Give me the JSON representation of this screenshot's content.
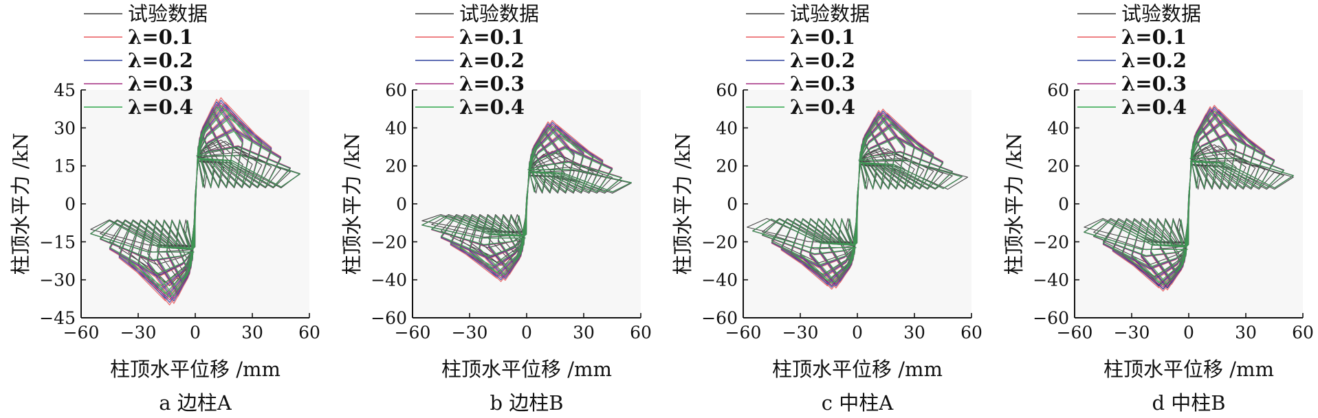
{
  "legend": [
    {
      "label": "试验数据",
      "color": "#333333"
    },
    {
      "label": "λ=0.1",
      "color": "#e8565a"
    },
    {
      "label": "λ=0.2",
      "color": "#2a3e9c"
    },
    {
      "label": "λ=0.3",
      "color": "#a0287f"
    },
    {
      "label": "λ=0.4",
      "color": "#2ea64a"
    }
  ],
  "chart_data": [
    {
      "type": "line",
      "caption": "a 边柱A",
      "xlabel": "柱顶水平位移 /mm",
      "ylabel": "柱顶水平力 /kN",
      "xlim": [
        -60,
        60
      ],
      "ylim": [
        -45,
        45
      ],
      "xticks": [
        -60,
        -30,
        0,
        30,
        60
      ],
      "xtick_labels": [
        "−60",
        "−30",
        "0",
        "30",
        "60"
      ],
      "yticks": [
        -45,
        -30,
        -15,
        0,
        15,
        30,
        45
      ],
      "ytick_labels": [
        "−45",
        "−30",
        "−15",
        "0",
        "15",
        "30",
        "45"
      ],
      "grid": false,
      "legend_position": "top-left",
      "series": [
        {
          "name": "试验数据",
          "amplitudes": [
            6,
            10,
            15,
            20,
            25,
            30,
            35,
            40,
            45,
            50,
            55
          ],
          "peak_pos": 25,
          "peak_neg": -36,
          "yield": 18
        },
        {
          "name": "λ=0.1",
          "amplitudes": [
            5,
            10,
            15,
            20,
            25,
            30,
            35,
            40,
            45,
            50,
            55
          ],
          "peak_pos": 42,
          "peak_neg": -40,
          "yield": 19
        },
        {
          "name": "λ=0.2",
          "amplitudes": [
            5,
            10,
            15,
            20,
            25,
            30,
            35,
            40,
            45,
            50,
            55
          ],
          "peak_pos": 41,
          "peak_neg": -39,
          "yield": 19
        },
        {
          "name": "λ=0.3",
          "amplitudes": [
            5,
            10,
            15,
            20,
            25,
            30,
            35,
            40,
            45,
            50,
            55
          ],
          "peak_pos": 40,
          "peak_neg": -38,
          "yield": 19
        },
        {
          "name": "λ=0.4",
          "amplitudes": [
            5,
            10,
            15,
            20,
            25,
            30,
            35,
            40,
            45,
            50,
            55
          ],
          "peak_pos": 39,
          "peak_neg": -37,
          "yield": 19
        }
      ]
    },
    {
      "type": "line",
      "caption": "b 边柱B",
      "xlabel": "柱顶水平位移 /mm",
      "ylabel": "柱顶水平力 /kN",
      "xlim": [
        -60,
        60
      ],
      "ylim": [
        -60,
        60
      ],
      "xticks": [
        -60,
        -30,
        0,
        30,
        60
      ],
      "xtick_labels": [
        "−60",
        "−30",
        "0",
        "30",
        "60"
      ],
      "yticks": [
        -60,
        -40,
        -20,
        0,
        20,
        40,
        60
      ],
      "ytick_labels": [
        "−60",
        "−40",
        "−20",
        "0",
        "20",
        "40",
        "60"
      ],
      "grid": false,
      "legend_position": "top-left",
      "series": [
        {
          "name": "试验数据",
          "amplitudes": [
            6,
            10,
            15,
            20,
            25,
            30,
            35,
            40,
            45,
            50,
            55
          ],
          "peak_pos": 28,
          "peak_neg": -36,
          "yield": 16
        },
        {
          "name": "λ=0.1",
          "amplitudes": [
            5,
            10,
            15,
            20,
            25,
            30,
            35,
            40,
            45,
            50,
            55
          ],
          "peak_pos": 44,
          "peak_neg": -41,
          "yield": 18
        },
        {
          "name": "λ=0.2",
          "amplitudes": [
            5,
            10,
            15,
            20,
            25,
            30,
            35,
            40,
            45,
            50,
            55
          ],
          "peak_pos": 43,
          "peak_neg": -40,
          "yield": 18
        },
        {
          "name": "λ=0.3",
          "amplitudes": [
            5,
            10,
            15,
            20,
            25,
            30,
            35,
            40,
            45,
            50,
            55
          ],
          "peak_pos": 42,
          "peak_neg": -39,
          "yield": 18
        },
        {
          "name": "λ=0.4",
          "amplitudes": [
            5,
            10,
            15,
            20,
            25,
            30,
            35,
            40,
            45,
            50,
            55
          ],
          "peak_pos": 41,
          "peak_neg": -38,
          "yield": 18
        }
      ]
    },
    {
      "type": "line",
      "caption": "c 中柱A",
      "xlabel": "柱顶水平位移 /mm",
      "ylabel": "柱顶水平力 /kN",
      "xlim": [
        -60,
        60
      ],
      "ylim": [
        -60,
        60
      ],
      "xticks": [
        -60,
        -30,
        0,
        30,
        60
      ],
      "xtick_labels": [
        "−60",
        "−30",
        "0",
        "30",
        "60"
      ],
      "yticks": [
        -60,
        -40,
        -20,
        0,
        20,
        40,
        60
      ],
      "ytick_labels": [
        "−60",
        "−40",
        "−20",
        "0",
        "20",
        "40",
        "60"
      ],
      "grid": false,
      "legend_position": "top-left",
      "series": [
        {
          "name": "试验数据",
          "amplitudes": [
            6,
            10,
            15,
            20,
            25,
            30,
            35,
            40,
            45,
            50,
            58
          ],
          "peak_pos": 30,
          "peak_neg": -48,
          "yield": 22
        },
        {
          "name": "λ=0.1",
          "amplitudes": [
            5,
            10,
            15,
            20,
            25,
            30,
            35,
            40,
            45,
            50,
            55
          ],
          "peak_pos": 50,
          "peak_neg": -45,
          "yield": 23
        },
        {
          "name": "λ=0.2",
          "amplitudes": [
            5,
            10,
            15,
            20,
            25,
            30,
            35,
            40,
            45,
            50,
            55
          ],
          "peak_pos": 49,
          "peak_neg": -44,
          "yield": 23
        },
        {
          "name": "λ=0.3",
          "amplitudes": [
            5,
            10,
            15,
            20,
            25,
            30,
            35,
            40,
            45,
            50,
            55
          ],
          "peak_pos": 48,
          "peak_neg": -43,
          "yield": 23
        },
        {
          "name": "λ=0.4",
          "amplitudes": [
            5,
            10,
            15,
            20,
            25,
            30,
            35,
            40,
            45,
            50,
            55
          ],
          "peak_pos": 47,
          "peak_neg": -42,
          "yield": 23
        }
      ]
    },
    {
      "type": "line",
      "caption": "d 中柱B",
      "xlabel": "柱顶水平位移 /mm",
      "ylabel": "柱顶水平力 /kN",
      "xlim": [
        -60,
        60
      ],
      "ylim": [
        -60,
        60
      ],
      "xticks": [
        -60,
        -30,
        0,
        30,
        60
      ],
      "xtick_labels": [
        "−60",
        "−30",
        "0",
        "30",
        "60"
      ],
      "yticks": [
        -60,
        -40,
        -20,
        0,
        20,
        40,
        60
      ],
      "ytick_labels": [
        "−60",
        "−40",
        "−20",
        "0",
        "20",
        "40",
        "60"
      ],
      "grid": false,
      "legend_position": "top-left",
      "series": [
        {
          "name": "试验数据",
          "amplitudes": [
            6,
            10,
            15,
            20,
            25,
            30,
            35,
            40,
            45,
            50,
            55
          ],
          "peak_pos": 32,
          "peak_neg": -50,
          "yield": 22
        },
        {
          "name": "λ=0.1",
          "amplitudes": [
            5,
            10,
            15,
            20,
            25,
            30,
            35,
            40,
            45,
            50,
            55
          ],
          "peak_pos": 52,
          "peak_neg": -46,
          "yield": 24
        },
        {
          "name": "λ=0.2",
          "amplitudes": [
            5,
            10,
            15,
            20,
            25,
            30,
            35,
            40,
            45,
            50,
            55
          ],
          "peak_pos": 51,
          "peak_neg": -45,
          "yield": 24
        },
        {
          "name": "λ=0.3",
          "amplitudes": [
            5,
            10,
            15,
            20,
            25,
            30,
            35,
            40,
            45,
            50,
            55
          ],
          "peak_pos": 50,
          "peak_neg": -44,
          "yield": 24
        },
        {
          "name": "λ=0.4",
          "amplitudes": [
            5,
            10,
            15,
            20,
            25,
            30,
            35,
            40,
            45,
            50,
            55
          ],
          "peak_pos": 49,
          "peak_neg": -43,
          "yield": 24
        }
      ]
    }
  ]
}
